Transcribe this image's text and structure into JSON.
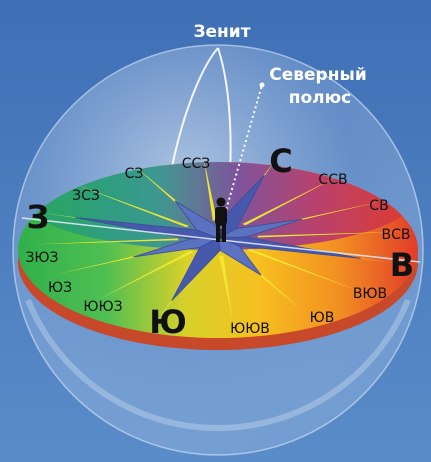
{
  "labels": {
    "zenith": "Зенит",
    "north_pole_line1": "Северный",
    "north_pole_line2": "полюс"
  },
  "cardinal": {
    "north": "С",
    "east": "В",
    "south": "Ю",
    "west": "З"
  },
  "intercardinal": {
    "nne": "ССВ",
    "ne": "СВ",
    "ene": "ВСВ",
    "ese": "ВЮВ",
    "se": "ЮВ",
    "sse": "ЮЮВ",
    "ssw": "ЮЮЗ",
    "sw": "ЮЗ",
    "wsw": "ЗЮЗ",
    "wnw": "ЗСЗ",
    "nw": "СЗ",
    "nnw": "ССЗ"
  },
  "colors": {
    "sky_background": "#4f7fbf",
    "horizon_north": "#6a3fb0",
    "horizon_east": "#e03a2a",
    "horizon_south": "#f6c020",
    "horizon_west": "#3cae4a",
    "compass_star": "#4a62b0",
    "compass_rays": "#f4ea30"
  }
}
